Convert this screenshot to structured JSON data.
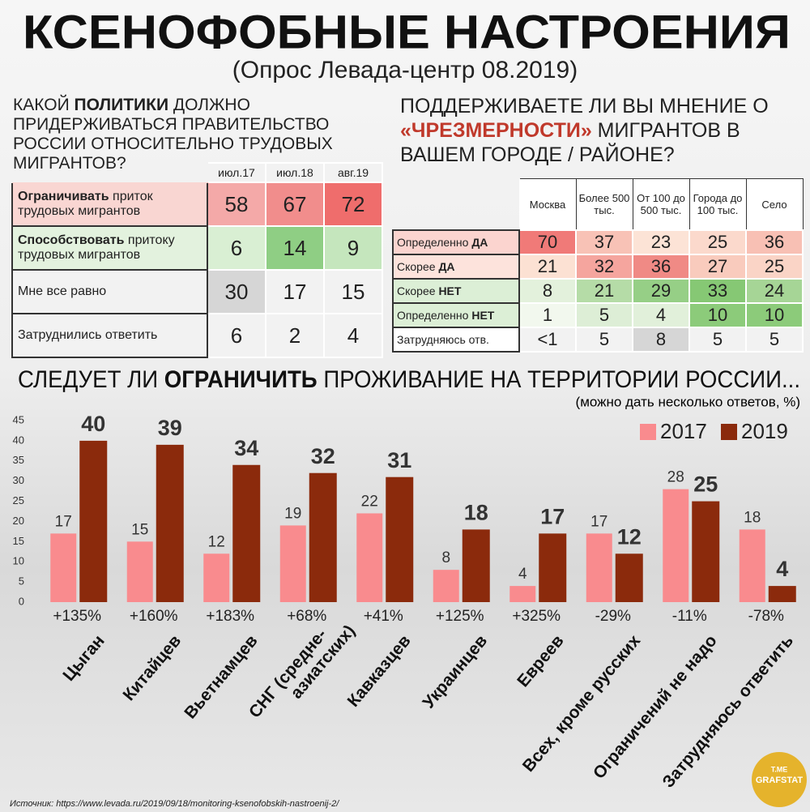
{
  "header": {
    "title": "КСЕНОФОБНЫЕ НАСТРОЕНИЯ",
    "subtitle": "(Опрос Левада-центр 08.2019)"
  },
  "question1": {
    "title_parts": [
      {
        "text": "КАКОЙ "
      },
      {
        "text": "ПОЛИТИКИ",
        "bold": true
      },
      {
        "text": " ДОЛЖНО ПРИДЕРЖИВАТЬСЯ ПРАВИТЕЛЬСТВО РОССИИ ОТНОСИТЕЛЬНО ТРУДОВЫХ МИГРАНТОВ?"
      }
    ]
  },
  "table1": {
    "columns": [
      "июл.17",
      "июл.18",
      "авг.19"
    ],
    "rows": [
      {
        "label_parts": [
          {
            "text": "Ограничивать",
            "bold": true
          },
          {
            "text": " приток трудовых мигрантов"
          }
        ],
        "label_color": "#f9d6d2",
        "values": [
          58,
          67,
          72
        ],
        "colors": [
          "#f4a9a8",
          "#f18d8c",
          "#ef6d6c"
        ]
      },
      {
        "label_parts": [
          {
            "text": "Способствовать",
            "bold": true
          },
          {
            "text": " притоку трудовых мигрантов"
          }
        ],
        "label_color": "#e3f2de",
        "values": [
          6,
          14,
          9
        ],
        "colors": [
          "#d9efd3",
          "#8fce84",
          "#c5e6bd"
        ]
      },
      {
        "label_parts": [
          {
            "text": "Мне все равно"
          }
        ],
        "label_color": "#f2f2f2",
        "values": [
          30,
          17,
          15
        ],
        "colors": [
          "#d6d6d6",
          "#f2f2f2",
          "#f2f2f2"
        ]
      },
      {
        "label_parts": [
          {
            "text": "Затруднились ответить"
          }
        ],
        "label_color": "#f2f2f2",
        "values": [
          6,
          2,
          4
        ],
        "colors": [
          "#f2f2f2",
          "#f2f2f2",
          "#f2f2f2"
        ]
      }
    ]
  },
  "question2": {
    "title_parts": [
      {
        "text": "ПОДДЕРЖИВАЕТЕ ЛИ ВЫ МНЕНИЕ О "
      },
      {
        "text": "«ЧРЕЗМЕРНОСТИ»",
        "bold": true
      },
      {
        "text": " МИГРАНТОВ В ВАШЕМ ГОРОДЕ / РАЙОНЕ?"
      }
    ]
  },
  "table2": {
    "columns": [
      "Москва",
      "Более 500 тыс.",
      "От 100 до 500 тыс.",
      "Города до 100 тыс.",
      "Село"
    ],
    "rows": [
      {
        "label_parts": [
          {
            "text": "Определенно "
          },
          {
            "text": "ДА",
            "bold": true
          }
        ],
        "label_color": "#fbd4cf",
        "values": [
          70,
          37,
          23,
          25,
          36
        ],
        "colors": [
          "#f07a78",
          "#f8c2b6",
          "#fce3d6",
          "#fbd9cc",
          "#f8c0b4"
        ]
      },
      {
        "label_parts": [
          {
            "text": "Скорее "
          },
          {
            "text": "ДА",
            "bold": true
          }
        ],
        "label_color": "#fde3dc",
        "values": [
          21,
          32,
          36,
          27,
          25
        ],
        "colors": [
          "#fce1d3",
          "#f5a59e",
          "#f08a85",
          "#f9cbbd",
          "#fad4c6"
        ]
      },
      {
        "label_parts": [
          {
            "text": "Скорее "
          },
          {
            "text": "НЕТ",
            "bold": true
          }
        ],
        "label_color": "#dcefd6",
        "values": [
          8,
          21,
          29,
          33,
          24
        ],
        "colors": [
          "#e3f1dc",
          "#b5dca7",
          "#96cf86",
          "#86c874",
          "#a6d596"
        ]
      },
      {
        "label_parts": [
          {
            "text": "Определенно "
          },
          {
            "text": "НЕТ",
            "bold": true
          }
        ],
        "label_color": "#dcefd6",
        "values": [
          1,
          5,
          4,
          10,
          10
        ],
        "colors": [
          "#f2f8ee",
          "#ddeed6",
          "#e1f0da",
          "#8ccb7a",
          "#8ccb7a"
        ]
      },
      {
        "label_parts": [
          {
            "text": "Затрудняюсь отв."
          }
        ],
        "label_color": "#ffffff",
        "values": [
          "<1",
          5,
          8,
          5,
          5
        ],
        "colors": [
          "#f2f2f2",
          "#f2f2f2",
          "#d6d6d6",
          "#f2f2f2",
          "#f2f2f2"
        ]
      }
    ]
  },
  "chart_data": {
    "type": "bar",
    "title_parts": [
      {
        "text": "СЛЕДУЕТ ЛИ "
      },
      {
        "text": "ОГРАНИЧИТЬ",
        "bold": true
      },
      {
        "text": " ПРОЖИВАНИЕ НА ТЕРРИТОРИИ РОССИИ..."
      }
    ],
    "subtitle": "(можно дать несколько ответов, %)",
    "categories": [
      "Цыган",
      "Китайцев",
      "Вьетнамцев",
      "СНГ (средне-азиатских)",
      "Кавказцев",
      "Украинцев",
      "Евреев",
      "Всех, кроме русских",
      "Ограничений не надо",
      "Затрудняюсь ответить"
    ],
    "series": [
      {
        "name": "2017",
        "color": "#f98b8e",
        "values": [
          17,
          15,
          12,
          19,
          22,
          8,
          4,
          17,
          28,
          18
        ]
      },
      {
        "name": "2019",
        "color": "#8b2a0c",
        "values": [
          40,
          39,
          34,
          32,
          31,
          18,
          17,
          12,
          25,
          4
        ]
      }
    ],
    "changes": [
      "+135%",
      "+160%",
      "+183%",
      "+68%",
      "+41%",
      "+125%",
      "+325%",
      "-29%",
      "-11%",
      "-78%"
    ],
    "ylim": [
      0,
      45
    ],
    "yticks": [
      0,
      5,
      10,
      15,
      20,
      25,
      30,
      35,
      40,
      45
    ],
    "legend": "upper right"
  },
  "source": "Источник: https://www.levada.ru/2019/09/18/monitoring-ksenofobskih-nastroenij-2/",
  "logo": [
    "T.ME",
    "GRAFSTAT"
  ]
}
